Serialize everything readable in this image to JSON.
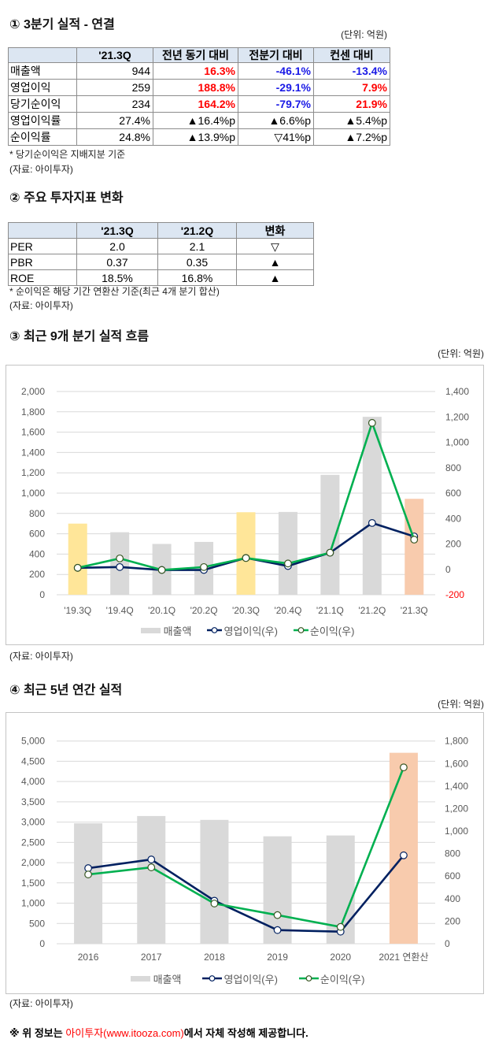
{
  "colors": {
    "up": "#FF0000",
    "down": "#1A1AE6",
    "plain": "#000000"
  },
  "section1": {
    "title": "① 3분기 실적 - 연결",
    "unit": "(단위: 억원)",
    "headers": [
      "",
      "'21.3Q",
      "전년 동기 대비",
      "전분기 대비",
      "컨센 대비"
    ],
    "rows": [
      {
        "label": "매출액",
        "cells": [
          {
            "text": "944",
            "tone": "plain"
          },
          {
            "text": "16.3%",
            "tone": "up"
          },
          {
            "text": "-46.1%",
            "tone": "down"
          },
          {
            "text": "-13.4%",
            "tone": "down"
          }
        ]
      },
      {
        "label": "영업이익",
        "cells": [
          {
            "text": "259",
            "tone": "plain"
          },
          {
            "text": "188.8%",
            "tone": "up"
          },
          {
            "text": "-29.1%",
            "tone": "down"
          },
          {
            "text": "7.9%",
            "tone": "up"
          }
        ]
      },
      {
        "label": "당기순이익",
        "cells": [
          {
            "text": "234",
            "tone": "plain"
          },
          {
            "text": "164.2%",
            "tone": "up"
          },
          {
            "text": "-79.7%",
            "tone": "down"
          },
          {
            "text": "21.9%",
            "tone": "up"
          }
        ]
      },
      {
        "label": "영업이익률",
        "cells": [
          {
            "text": "27.4%",
            "tone": "plain"
          },
          {
            "text": "▲16.4%p",
            "tone": "plain"
          },
          {
            "text": "▲6.6%p",
            "tone": "plain"
          },
          {
            "text": "▲5.4%p",
            "tone": "plain"
          }
        ]
      },
      {
        "label": "순이익률",
        "cells": [
          {
            "text": "24.8%",
            "tone": "plain"
          },
          {
            "text": "▲13.9%p",
            "tone": "plain"
          },
          {
            "text": "▽41%p",
            "tone": "plain"
          },
          {
            "text": "▲7.2%p",
            "tone": "plain"
          }
        ]
      }
    ],
    "note": "* 당기순이익은 지배지분 기준",
    "source": "(자료: 아이투자)"
  },
  "section2": {
    "title": "② 주요 투자지표 변화",
    "headers": [
      "",
      "'21.3Q",
      "'21.2Q",
      "변화"
    ],
    "rows": [
      {
        "label": "PER",
        "cells": [
          "2.0",
          "2.1",
          "▽"
        ]
      },
      {
        "label": "PBR",
        "cells": [
          "0.37",
          "0.35",
          "▲"
        ]
      },
      {
        "label": "ROE",
        "cells": [
          "18.5%",
          "16.8%",
          "▲"
        ]
      }
    ],
    "note": "* 순이익은 해당 기간 연환산 기준(최근 4개 분기 합산)",
    "source": "(자료: 아이투자)"
  },
  "section3": {
    "title": "③ 최근 9개 분기 실적 흐름",
    "unit": "(단위: 억원)",
    "source": "(자료: 아이투자)"
  },
  "section4": {
    "title": "④ 최근 5년 연간 실적",
    "unit": "(단위: 억원)",
    "source": "(자료: 아이투자)"
  },
  "footer": {
    "prefix": "※ 위 정보는 ",
    "brand": "아이투자(www.itooza.com)",
    "suffix": "에서 자체 작성해 제공합니다."
  },
  "chart_data": [
    {
      "type": "bar+line",
      "title": "③ 최근 9개 분기 실적 흐름",
      "unit": "(단위: 억원)",
      "categories": [
        "'19.3Q",
        "'19.4Q",
        "'20.1Q",
        "'20.2Q",
        "'20.3Q",
        "'20.4Q",
        "'21.1Q",
        "'21.2Q",
        "'21.3Q"
      ],
      "series": [
        {
          "key": "revenue",
          "name": "매출액",
          "type": "bar",
          "axis": "left",
          "values": [
            700,
            615,
            500,
            520,
            812,
            815,
            1180,
            1751,
            944
          ],
          "colors": [
            "#FFE699",
            "#D9D9D9",
            "#D9D9D9",
            "#D9D9D9",
            "#FFE699",
            "#D9D9D9",
            "#D9D9D9",
            "#D9D9D9",
            "#F8CBAD"
          ]
        },
        {
          "key": "operating-profit",
          "name": "영업이익(우)",
          "type": "line",
          "axis": "right",
          "color": "#002060",
          "marker_stroke": "#002060",
          "values": [
            12,
            18,
            -5,
            -5,
            90,
            26,
            131,
            365,
            259
          ]
        },
        {
          "key": "net-income",
          "name": "순이익(우)",
          "type": "line",
          "axis": "right",
          "color": "#00B050",
          "marker_stroke": "#385723",
          "values": [
            12,
            86,
            -5,
            18,
            89,
            46,
            131,
            1153,
            234
          ]
        }
      ],
      "y_left": {
        "range": [
          0,
          2000
        ],
        "ticks": [
          0,
          200,
          400,
          600,
          800,
          1000,
          1200,
          1400,
          1600,
          1800,
          2000
        ],
        "tick_labels": [
          "0",
          "200",
          "400",
          "600",
          "800",
          "1,000",
          "1,200",
          "1,400",
          "1,600",
          "1,800",
          "2,000"
        ]
      },
      "y_right": {
        "range": [
          -200,
          1400
        ],
        "ticks": [
          -200,
          0,
          200,
          400,
          600,
          800,
          1000,
          1200,
          1400
        ],
        "tick_labels": [
          "-200",
          "0",
          "200",
          "400",
          "600",
          "800",
          "1,000",
          "1,200",
          "1,400"
        ],
        "negative_color": "#FF0000"
      },
      "xlabel": "",
      "ylabel": "",
      "grid": true,
      "legend_position": "bottom"
    },
    {
      "type": "bar+line",
      "title": "④ 최근 5년 연간 실적",
      "unit": "(단위: 억원)",
      "categories": [
        "2016",
        "2017",
        "2018",
        "2019",
        "2020",
        "2021 연환산"
      ],
      "series": [
        {
          "key": "revenue",
          "name": "매출액",
          "type": "bar",
          "axis": "left",
          "values": [
            2970,
            3150,
            3055,
            2650,
            2670,
            4710
          ],
          "colors": [
            "#D9D9D9",
            "#D9D9D9",
            "#D9D9D9",
            "#D9D9D9",
            "#D9D9D9",
            "#F8CBAD"
          ]
        },
        {
          "key": "operating-profit",
          "name": "영업이익(우)",
          "type": "line",
          "axis": "right",
          "color": "#002060",
          "marker_stroke": "#002060",
          "values": [
            671,
            748,
            382,
            121,
            107,
            785
          ]
        },
        {
          "key": "net-income",
          "name": "순이익(우)",
          "type": "line",
          "axis": "right",
          "color": "#00B050",
          "marker_stroke": "#385723",
          "values": [
            615,
            678,
            357,
            254,
            149,
            1566
          ]
        }
      ],
      "y_left": {
        "range": [
          0,
          5000
        ],
        "ticks": [
          0,
          500,
          1000,
          1500,
          2000,
          2500,
          3000,
          3500,
          4000,
          4500,
          5000
        ],
        "tick_labels": [
          "0",
          "500",
          "1,000",
          "1,500",
          "2,000",
          "2,500",
          "3,000",
          "3,500",
          "4,000",
          "4,500",
          "5,000"
        ]
      },
      "y_right": {
        "range": [
          0,
          1800
        ],
        "ticks": [
          0,
          200,
          400,
          600,
          800,
          1000,
          1200,
          1400,
          1600,
          1800
        ],
        "tick_labels": [
          "0",
          "200",
          "400",
          "600",
          "800",
          "1,000",
          "1,200",
          "1,400",
          "1,600",
          "1,800"
        ]
      },
      "xlabel": "",
      "ylabel": "",
      "grid": true,
      "legend_position": "bottom"
    }
  ]
}
